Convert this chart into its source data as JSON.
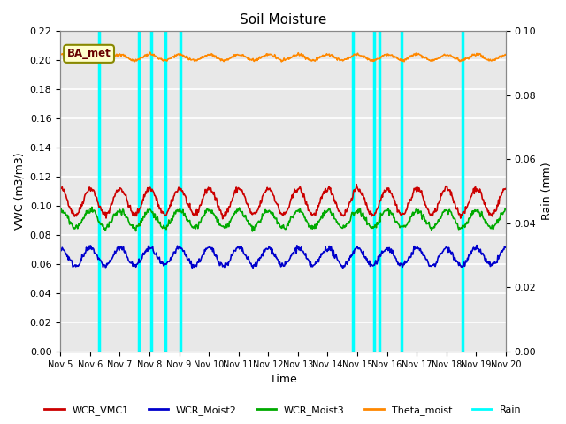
{
  "title": "Soil Moisture",
  "ylabel_left": "VWC (m3/m3)",
  "ylabel_right": "Rain (mm)",
  "xlabel": "Time",
  "xlim": [
    5,
    20
  ],
  "ylim_left": [
    0.0,
    0.22
  ],
  "ylim_right": [
    0.0,
    0.1
  ],
  "yticks_left": [
    0.0,
    0.02,
    0.04,
    0.06,
    0.08,
    0.1,
    0.12,
    0.14,
    0.16,
    0.18,
    0.2,
    0.22
  ],
  "yticks_right": [
    0.0,
    0.02,
    0.04,
    0.06,
    0.08,
    0.1
  ],
  "xtick_labels": [
    "Nov 5",
    "Nov 6",
    "Nov 7",
    "Nov 8",
    "Nov 9",
    "Nov 10",
    "Nov 11",
    "Nov 12",
    "Nov 13",
    "Nov 14",
    "Nov 15",
    "Nov 16",
    "Nov 17",
    "Nov 18",
    "Nov 19",
    "Nov 20"
  ],
  "xtick_positions": [
    5,
    6,
    7,
    8,
    9,
    10,
    11,
    12,
    13,
    14,
    15,
    16,
    17,
    18,
    19,
    20
  ],
  "background_color": "#e8e8e8",
  "grid_color": "#ffffff",
  "rain_events": [
    6.3,
    7.65,
    8.05,
    8.55,
    9.05,
    14.85,
    15.55,
    15.75,
    16.5,
    18.55
  ],
  "legend_label": "BA_met",
  "colors": {
    "WCR_VMC1": "#cc0000",
    "WCR_Moist2": "#0000cc",
    "WCR_Moist3": "#00aa00",
    "Theta_moist": "#ff8800",
    "Rain": "#00ffff"
  },
  "series_labels": [
    "WCR_VMC1",
    "WCR_Moist2",
    "WCR_Moist3",
    "Theta_moist",
    "Rain"
  ],
  "figsize": [
    6.4,
    4.8
  ],
  "dpi": 100
}
